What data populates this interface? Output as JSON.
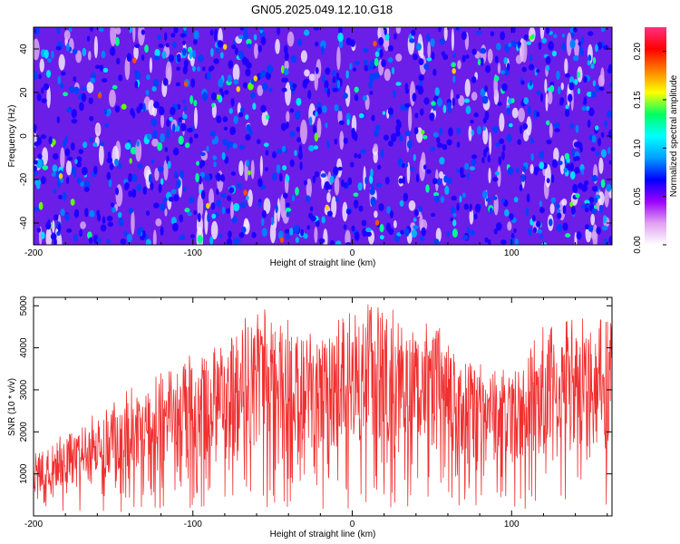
{
  "title": "GN05.2025.049.12.10.G18",
  "chart_data": [
    {
      "type": "heatmap",
      "xlabel": "Height of straight line (km)",
      "ylabel": "Frequency (Hz)",
      "xlim": [
        -200,
        163
      ],
      "ylim": [
        -50,
        50
      ],
      "xticks": [
        -200,
        -100,
        0,
        100
      ],
      "yticks": [
        -40,
        -20,
        0,
        20,
        40
      ],
      "colorbar": {
        "label": "Normalized spectral amplitude",
        "range": [
          0.0,
          0.225
        ],
        "ticks": [
          "0.00",
          "0.05",
          "0.10",
          "0.15",
          "0.20"
        ],
        "colormap": [
          "#ffffff",
          "#e0a0f0",
          "#9a00ff",
          "#0000ff",
          "#00a0ff",
          "#00ffff",
          "#00ff60",
          "#ffff00",
          "#ff8000",
          "#ff0000",
          "#ff3080"
        ]
      },
      "grid": false
    },
    {
      "type": "line",
      "xlabel": "Height of straight line (km)",
      "ylabel": "SNR (10 * v/v)",
      "xlim": [
        -200,
        163
      ],
      "ylim": [
        0,
        5200
      ],
      "xticks": [
        -200,
        -100,
        0,
        100
      ],
      "yticks": [
        1000,
        2000,
        3000,
        4000,
        5000
      ],
      "color": "#f03030",
      "series": [
        {
          "x": [
            -200,
            -180,
            -160,
            -140,
            -120,
            -100,
            -80,
            -60,
            -40,
            -20,
            0,
            20,
            40,
            60,
            80,
            100,
            120,
            140,
            163
          ],
          "values": [
            1000,
            1300,
            1600,
            2000,
            2200,
            2500,
            2900,
            3200,
            3000,
            2800,
            3200,
            3300,
            3100,
            2800,
            2400,
            2300,
            2900,
            3100,
            3100
          ]
        }
      ],
      "grid": false
    }
  ]
}
